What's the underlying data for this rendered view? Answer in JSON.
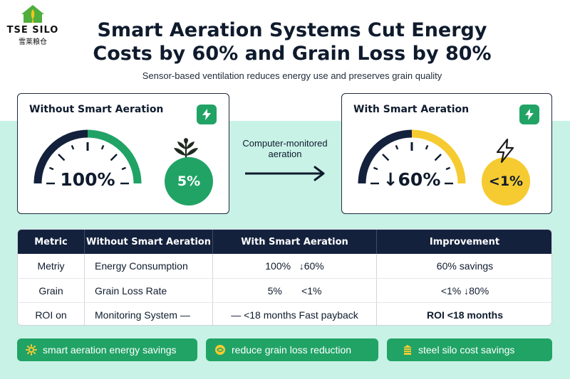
{
  "logo": {
    "name": "TSE SILO",
    "chinese": "雪莱粮仓"
  },
  "header": {
    "title_line1": "Smart Aeration Systems Cut Energy",
    "title_line2": "Costs by 60% and Grain Loss by 80%",
    "subtitle": "Sensor-based ventilation reduces energy use and preserves grain quality"
  },
  "cards": {
    "without": {
      "title": "Without Smart Aeration",
      "gauge_value": "100%",
      "gauge_level": 1.0,
      "circle_value": "5%",
      "circle_icon": "plant-icon",
      "badge_icon": "bolt-icon"
    },
    "with": {
      "title": "With Smart Aeration",
      "gauge_value": "↓60%",
      "gauge_level": 0.4,
      "circle_value": "<1%",
      "circle_icon": "bolt-icon",
      "badge_icon": "bolt-icon"
    }
  },
  "arrow_label": "Computer-monitored aeration",
  "table": {
    "headers": [
      "Metric",
      "Without Smart Aeration",
      "With Smart Aeration",
      "Improvement"
    ],
    "rows": [
      [
        "Metriy",
        "Energy Consumption",
        "100%   ↓60%",
        "60% savings"
      ],
      [
        "Grain",
        "Grain Loss Rate",
        "5%       <1%",
        "<1% ↓80%"
      ],
      [
        "ROI on",
        "Monitoring System —",
        "— <18 months Fast payback",
        "ROI <18 months"
      ]
    ]
  },
  "chips": [
    {
      "label": "smart aeration energy savings",
      "icon": "gear-icon"
    },
    {
      "label": "reduce grain loss reduction",
      "icon": "grain-icon"
    },
    {
      "label": "steel silo cost savings",
      "icon": "silo-icon"
    }
  ],
  "colors": {
    "navy": "#14213d",
    "green": "#21a366",
    "yellow": "#f6cb31",
    "mint": "#c8f2e6"
  }
}
